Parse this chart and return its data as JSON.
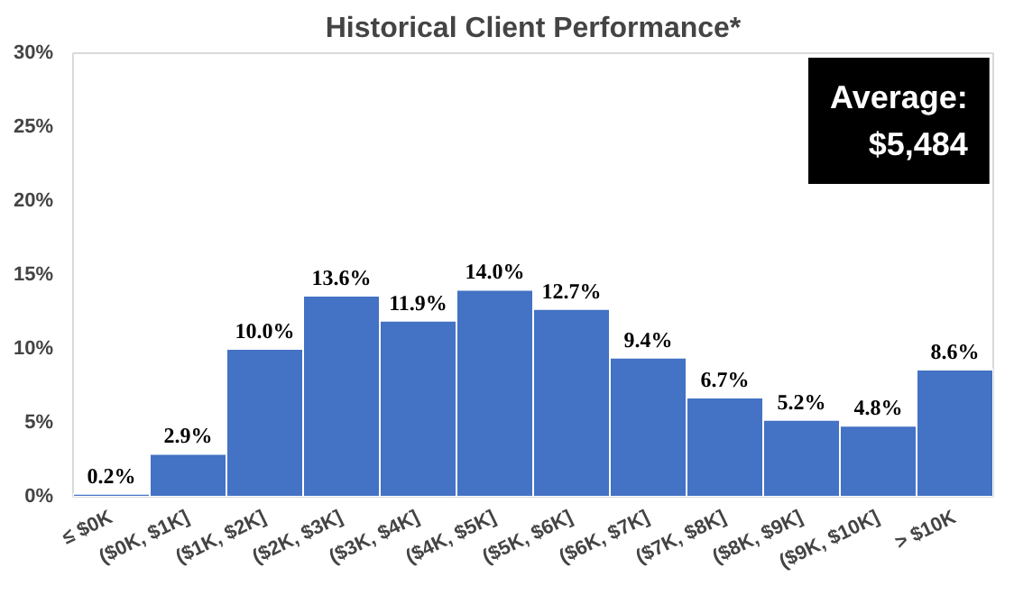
{
  "chart_data": {
    "type": "bar",
    "title": "Historical Client Performance*",
    "categories": [
      "≤ $0K",
      "($0K, $1K]",
      "($1K, $2K]",
      "($2K, $3K]",
      "($3K, $4K]",
      "($4K, $5K]",
      "($5K, $6K]",
      "($6K, $7K]",
      "($7K, $8K]",
      "($8K, $9K]",
      "($9K, $10K]",
      "> $10K"
    ],
    "values": [
      0.2,
      2.9,
      10.0,
      13.6,
      11.9,
      14.0,
      12.7,
      9.4,
      6.7,
      5.2,
      4.8,
      8.6
    ],
    "value_labels": [
      "0.2%",
      "2.9%",
      "10.0%",
      "13.6%",
      "11.9%",
      "14.0%",
      "12.7%",
      "9.4%",
      "6.7%",
      "5.2%",
      "4.8%",
      "8.6%"
    ],
    "color": "#4472c4",
    "ylim": [
      0,
      30
    ],
    "yticks": [
      {
        "value": 0,
        "label": "0%"
      },
      {
        "value": 5,
        "label": "5%"
      },
      {
        "value": 10,
        "label": "10%"
      },
      {
        "value": 15,
        "label": "15%"
      },
      {
        "value": 20,
        "label": "20%"
      },
      {
        "value": 25,
        "label": "25%"
      },
      {
        "value": 30,
        "label": "30%"
      }
    ],
    "annotations": [
      "Average:\n$5,484"
    ],
    "grid": false
  }
}
